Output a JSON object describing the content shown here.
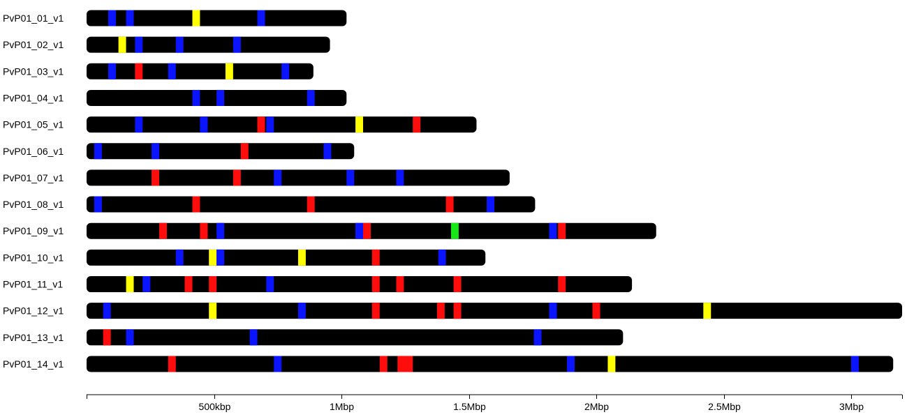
{
  "chart_data": {
    "type": "karyotype",
    "title": "",
    "xlabel": "",
    "ylabel": "",
    "xlim": [
      0,
      3200000
    ],
    "x_ticks": [
      {
        "value": 0,
        "label": ""
      },
      {
        "value": 500000,
        "label": "500kbp"
      },
      {
        "value": 1000000,
        "label": "1Mbp"
      },
      {
        "value": 1500000,
        "label": "1.5Mbp"
      },
      {
        "value": 2000000,
        "label": "2Mbp"
      },
      {
        "value": 2500000,
        "label": "2.5Mbp"
      },
      {
        "value": 3000000,
        "label": "3Mbp"
      },
      {
        "value": 3200000,
        "label": ""
      }
    ],
    "marker_colors": {
      "blue": "#0a14ff",
      "red": "#ff0d0d",
      "yellow": "#ffff00",
      "green": "#17e817"
    },
    "bar_color": "#000000",
    "marker_width_bp": 30000,
    "chromosomes": [
      {
        "name": "PvP01_01_v1",
        "length": 1020000,
        "markers": [
          {
            "pos": 100000,
            "color": "blue"
          },
          {
            "pos": 170000,
            "color": "blue"
          },
          {
            "pos": 430000,
            "color": "yellow"
          },
          {
            "pos": 685000,
            "color": "blue"
          }
        ]
      },
      {
        "name": "PvP01_02_v1",
        "length": 955000,
        "markers": [
          {
            "pos": 140000,
            "color": "yellow"
          },
          {
            "pos": 205000,
            "color": "blue"
          },
          {
            "pos": 365000,
            "color": "blue"
          },
          {
            "pos": 590000,
            "color": "blue"
          }
        ]
      },
      {
        "name": "PvP01_03_v1",
        "length": 890000,
        "markers": [
          {
            "pos": 100000,
            "color": "blue"
          },
          {
            "pos": 205000,
            "color": "red"
          },
          {
            "pos": 335000,
            "color": "blue"
          },
          {
            "pos": 560000,
            "color": "yellow"
          },
          {
            "pos": 780000,
            "color": "blue"
          }
        ]
      },
      {
        "name": "PvP01_04_v1",
        "length": 1020000,
        "markers": [
          {
            "pos": 430000,
            "color": "blue"
          },
          {
            "pos": 525000,
            "color": "blue"
          },
          {
            "pos": 880000,
            "color": "blue"
          }
        ]
      },
      {
        "name": "PvP01_05_v1",
        "length": 1530000,
        "markers": [
          {
            "pos": 205000,
            "color": "blue"
          },
          {
            "pos": 460000,
            "color": "blue"
          },
          {
            "pos": 685000,
            "color": "red"
          },
          {
            "pos": 720000,
            "color": "blue"
          },
          {
            "pos": 1070000,
            "color": "yellow"
          },
          {
            "pos": 1295000,
            "color": "red"
          }
        ]
      },
      {
        "name": "PvP01_06_v1",
        "length": 1050000,
        "markers": [
          {
            "pos": 45000,
            "color": "blue"
          },
          {
            "pos": 270000,
            "color": "blue"
          },
          {
            "pos": 620000,
            "color": "red"
          },
          {
            "pos": 945000,
            "color": "blue"
          }
        ]
      },
      {
        "name": "PvP01_07_v1",
        "length": 1660000,
        "markers": [
          {
            "pos": 270000,
            "color": "red"
          },
          {
            "pos": 590000,
            "color": "red"
          },
          {
            "pos": 750000,
            "color": "blue"
          },
          {
            "pos": 1035000,
            "color": "blue"
          },
          {
            "pos": 1230000,
            "color": "blue"
          }
        ]
      },
      {
        "name": "PvP01_08_v1",
        "length": 1760000,
        "markers": [
          {
            "pos": 45000,
            "color": "blue"
          },
          {
            "pos": 430000,
            "color": "red"
          },
          {
            "pos": 880000,
            "color": "red"
          },
          {
            "pos": 1425000,
            "color": "red"
          },
          {
            "pos": 1585000,
            "color": "blue"
          }
        ]
      },
      {
        "name": "PvP01_09_v1",
        "length": 2235000,
        "markers": [
          {
            "pos": 300000,
            "color": "red"
          },
          {
            "pos": 460000,
            "color": "red"
          },
          {
            "pos": 525000,
            "color": "blue"
          },
          {
            "pos": 1070000,
            "color": "blue"
          },
          {
            "pos": 1100000,
            "color": "red"
          },
          {
            "pos": 1445000,
            "color": "green"
          },
          {
            "pos": 1830000,
            "color": "blue"
          },
          {
            "pos": 1865000,
            "color": "red"
          }
        ]
      },
      {
        "name": "PvP01_10_v1",
        "length": 1565000,
        "markers": [
          {
            "pos": 365000,
            "color": "blue"
          },
          {
            "pos": 495000,
            "color": "yellow"
          },
          {
            "pos": 525000,
            "color": "blue"
          },
          {
            "pos": 845000,
            "color": "yellow"
          },
          {
            "pos": 1135000,
            "color": "red"
          },
          {
            "pos": 1395000,
            "color": "blue"
          }
        ]
      },
      {
        "name": "PvP01_11_v1",
        "length": 2140000,
        "markers": [
          {
            "pos": 170000,
            "color": "yellow"
          },
          {
            "pos": 235000,
            "color": "blue"
          },
          {
            "pos": 400000,
            "color": "red"
          },
          {
            "pos": 495000,
            "color": "red"
          },
          {
            "pos": 720000,
            "color": "blue"
          },
          {
            "pos": 1135000,
            "color": "red"
          },
          {
            "pos": 1230000,
            "color": "red"
          },
          {
            "pos": 1455000,
            "color": "red"
          },
          {
            "pos": 1865000,
            "color": "red"
          }
        ]
      },
      {
        "name": "PvP01_12_v1",
        "length": 3200000,
        "markers": [
          {
            "pos": 80000,
            "color": "blue"
          },
          {
            "pos": 495000,
            "color": "yellow"
          },
          {
            "pos": 845000,
            "color": "blue"
          },
          {
            "pos": 1135000,
            "color": "red"
          },
          {
            "pos": 1390000,
            "color": "red"
          },
          {
            "pos": 1455000,
            "color": "red"
          },
          {
            "pos": 1830000,
            "color": "blue"
          },
          {
            "pos": 2000000,
            "color": "red"
          },
          {
            "pos": 2435000,
            "color": "yellow"
          }
        ]
      },
      {
        "name": "PvP01_13_v1",
        "length": 2105000,
        "markers": [
          {
            "pos": 80000,
            "color": "red"
          },
          {
            "pos": 170000,
            "color": "blue"
          },
          {
            "pos": 655000,
            "color": "blue"
          },
          {
            "pos": 1770000,
            "color": "blue"
          }
        ]
      },
      {
        "name": "PvP01_14_v1",
        "length": 3165000,
        "markers": [
          {
            "pos": 335000,
            "color": "red"
          },
          {
            "pos": 750000,
            "color": "blue"
          },
          {
            "pos": 1165000,
            "color": "red"
          },
          {
            "pos": 1250000,
            "color": "red",
            "width": 60000
          },
          {
            "pos": 1900000,
            "color": "blue"
          },
          {
            "pos": 2060000,
            "color": "yellow"
          },
          {
            "pos": 3015000,
            "color": "blue"
          }
        ]
      }
    ]
  }
}
